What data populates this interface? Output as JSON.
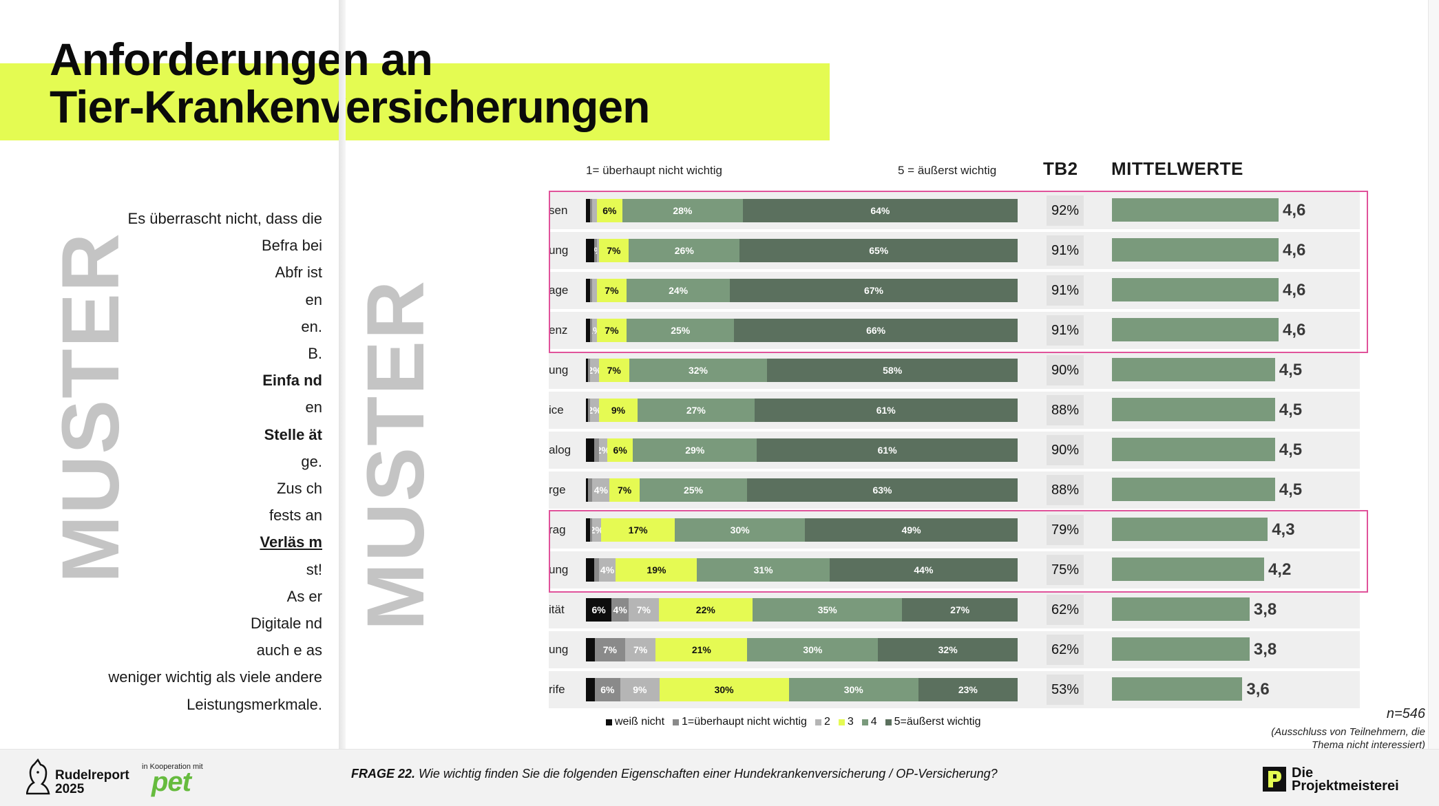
{
  "title": "Anforderungen an\nTier-Krankenversicherungen",
  "body_text": [
    "Es überrascht nicht, dass die",
    "Befra                              bei",
    "Abfr                               ist",
    "                                    en",
    "                                    en.",
    "                                    B.",
    "Einfa                              nd",
    "                                    en",
    "Stelle                             ät",
    "                                   ge.",
    "Zus                                ch",
    "fests                              an",
    "Verläs                             m",
    "                                   st!",
    "As                                 er",
    "Digitale                           nd",
    "auch e                             as",
    "weniger wichtig als viele andere",
    "Leistungsmerkmale."
  ],
  "watermark": "MUSTER",
  "scale_left": "1= überhaupt nicht wichtig",
  "scale_right": "5 = äußerst wichtig",
  "tb2_header": "TB2",
  "mean_header": "MITTELWERTE",
  "colors": {
    "weiss_nicht": "#0d0d0d",
    "v1": "#8a8a8a",
    "v2": "#b5b5b5",
    "v3": "#e5fa53",
    "v4": "#7a9a7c",
    "v5": "#5b705e",
    "highlight": "#e0529a",
    "accent": "#e4fb52"
  },
  "legend": [
    {
      "label": "weiß nicht",
      "color": "#0d0d0d"
    },
    {
      "label": "1=überhaupt nicht wichtig",
      "color": "#8a8a8a"
    },
    {
      "label": "2",
      "color": "#b5b5b5"
    },
    {
      "label": "3",
      "color": "#e5fa53"
    },
    {
      "label": "4",
      "color": "#7a9a7c"
    },
    {
      "label": "5=äußerst wichtig",
      "color": "#5b705e"
    }
  ],
  "chart_data": {
    "type": "bar",
    "stacked": true,
    "orientation": "horizontal",
    "categories": [
      "sen",
      "ung",
      "age",
      "enz",
      "ung",
      "ice",
      "alog",
      "rge",
      "rag",
      "ung",
      "ität",
      "ung",
      "rife"
    ],
    "stack_order": [
      "weiß nicht",
      "1",
      "2",
      "3",
      "4",
      "5"
    ],
    "rows": [
      {
        "label": "sen",
        "values": [
          1,
          0.5,
          1,
          6,
          28,
          64
        ],
        "labels": [
          "",
          "",
          "",
          "6%",
          "28%",
          "64%"
        ],
        "tb2": "92%",
        "mean": 4.6,
        "mean_label": "4,6"
      },
      {
        "label": "ung",
        "values": [
          2,
          0.5,
          0.5,
          7,
          26,
          65
        ],
        "labels": [
          "",
          "0%",
          "",
          "7%",
          "26%",
          "65%"
        ],
        "tb2": "91%",
        "mean": 4.6,
        "mean_label": "4,6"
      },
      {
        "label": "age",
        "values": [
          1,
          0.5,
          1,
          7,
          24,
          67
        ],
        "labels": [
          "",
          "",
          "",
          "7%",
          "24%",
          "67%"
        ],
        "tb2": "91%",
        "mean": 4.6,
        "mean_label": "4,6"
      },
      {
        "label": "enz",
        "values": [
          1,
          0.5,
          1,
          7,
          25,
          66
        ],
        "labels": [
          "",
          "",
          "1%",
          "7%",
          "25%",
          "66%"
        ],
        "tb2": "91%",
        "mean": 4.6,
        "mean_label": "4,6"
      },
      {
        "label": "ung",
        "values": [
          0.5,
          0.5,
          2,
          7,
          32,
          58
        ],
        "labels": [
          "",
          "",
          "2%",
          "7%",
          "32%",
          "58%"
        ],
        "tb2": "90%",
        "mean": 4.5,
        "mean_label": "4,5"
      },
      {
        "label": "ice",
        "values": [
          0.5,
          0.5,
          2,
          9,
          27,
          61
        ],
        "labels": [
          "",
          "",
          "2%",
          "9%",
          "27%",
          "61%"
        ],
        "tb2": "88%",
        "mean": 4.5,
        "mean_label": "4,5"
      },
      {
        "label": "alog",
        "values": [
          2,
          1,
          2,
          6,
          29,
          61
        ],
        "labels": [
          "",
          "",
          "2%",
          "6%",
          "29%",
          "61%"
        ],
        "tb2": "90%",
        "mean": 4.5,
        "mean_label": "4,5"
      },
      {
        "label": "rge",
        "values": [
          0.5,
          1,
          4,
          7,
          25,
          63
        ],
        "labels": [
          "",
          "",
          "4%",
          "7%",
          "25%",
          "63%"
        ],
        "tb2": "88%",
        "mean": 4.5,
        "mean_label": "4,5"
      },
      {
        "label": "rag",
        "values": [
          1,
          0.5,
          2,
          17,
          30,
          49
        ],
        "labels": [
          "",
          "",
          "2%",
          "17%",
          "30%",
          "49%"
        ],
        "tb2": "79%",
        "mean": 4.3,
        "mean_label": "4,3"
      },
      {
        "label": "ung",
        "values": [
          2,
          1,
          4,
          19,
          31,
          44
        ],
        "labels": [
          "",
          "",
          "4%",
          "19%",
          "31%",
          "44%"
        ],
        "tb2": "75%",
        "mean": 4.2,
        "mean_label": "4,2"
      },
      {
        "label": "ität",
        "values": [
          6,
          4,
          7,
          22,
          35,
          27
        ],
        "labels": [
          "6%",
          "4%",
          "7%",
          "22%",
          "35%",
          "27%"
        ],
        "tb2": "62%",
        "mean": 3.8,
        "mean_label": "3,8"
      },
      {
        "label": "ung",
        "values": [
          2,
          7,
          7,
          21,
          30,
          32
        ],
        "labels": [
          "",
          "7%",
          "7%",
          "21%",
          "30%",
          "32%"
        ],
        "tb2": "62%",
        "mean": 3.8,
        "mean_label": "3,8"
      },
      {
        "label": "rife",
        "values": [
          2,
          6,
          9,
          30,
          30,
          23
        ],
        "labels": [
          "",
          "6%",
          "9%",
          "30%",
          "30%",
          "23%"
        ],
        "tb2": "53%",
        "mean": 3.6,
        "mean_label": "3,6"
      }
    ],
    "xlim": [
      0,
      100
    ],
    "mean_range": [
      1,
      5
    ],
    "highlight_groups": [
      [
        0,
        3
      ],
      [
        8,
        9
      ]
    ]
  },
  "n_label": "n=546",
  "note": "(Ausschluss von Teilnehmern, die\nThema nicht interessiert)",
  "footer": {
    "rudelreport": "Rudelreport\n2025",
    "kooperation": "in Kooperation mit",
    "pet": "pet",
    "question_prefix": "FRAGE 22.",
    "question_text": " Wie wichtig finden Sie die folgenden Eigenschaften einer Hundekrankenversicherung / OP-Versicherung?",
    "projektmeisterei": "Die\nProjektmeisterei"
  }
}
